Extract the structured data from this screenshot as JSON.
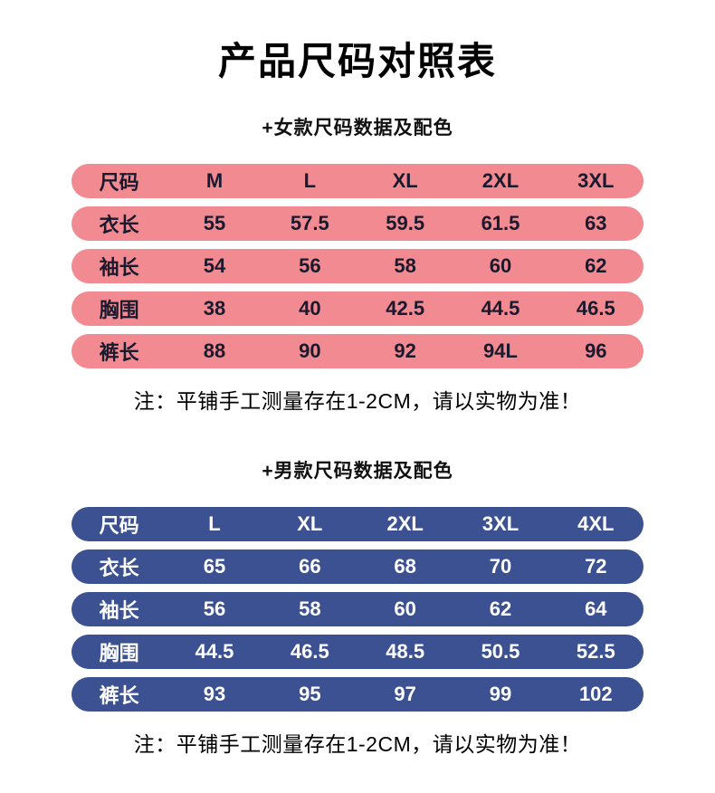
{
  "page": {
    "title": "产品尺码对照表",
    "background_color": "#ffffff"
  },
  "women": {
    "subtitle": "+女款尺码数据及配色",
    "row_color": "#f28a92",
    "text_color": "#1a1a2e",
    "rows": [
      [
        "尺码",
        "M",
        "L",
        "XL",
        "2XL",
        "3XL"
      ],
      [
        "衣长",
        "55",
        "57.5",
        "59.5",
        "61.5",
        "63"
      ],
      [
        "袖长",
        "54",
        "56",
        "58",
        "60",
        "62"
      ],
      [
        "胸围",
        "38",
        "40",
        "42.5",
        "44.5",
        "46.5"
      ],
      [
        "裤长",
        "88",
        "90",
        "92",
        "94L",
        "96"
      ]
    ],
    "note": "注：平铺手工测量存在1-2CM，请以实物为准！"
  },
  "men": {
    "subtitle": "+男款尺码数据及配色",
    "row_color": "#3c5191",
    "text_color": "#ffffff",
    "rows": [
      [
        "尺码",
        "L",
        "XL",
        "2XL",
        "3XL",
        "4XL"
      ],
      [
        "衣长",
        "65",
        "66",
        "68",
        "70",
        "72"
      ],
      [
        "袖长",
        "56",
        "58",
        "60",
        "62",
        "64"
      ],
      [
        "胸围",
        "44.5",
        "46.5",
        "48.5",
        "50.5",
        "52.5"
      ],
      [
        "裤长",
        "93",
        "95",
        "97",
        "99",
        "102"
      ]
    ],
    "note": "注：平铺手工测量存在1-2CM，请以实物为准！"
  }
}
